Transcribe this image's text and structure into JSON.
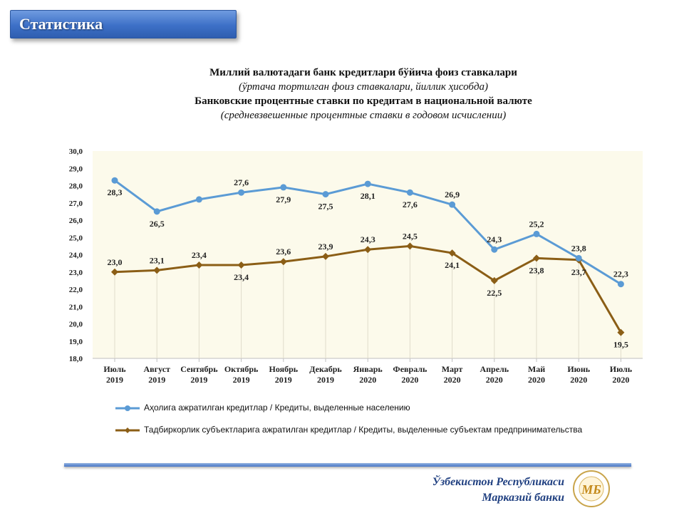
{
  "header": {
    "tab_label": "Статистика"
  },
  "titles": {
    "uz_title": "Миллий валютадаги банк кредитлари бўйича фоиз ставкалари",
    "uz_subtitle": "(ўртача тортилган фоиз ставкалари, йиллик ҳисобда)",
    "ru_title": "Банковские процентные ставки по кредитам в национальной валюте",
    "ru_subtitle": "(средневзвешенные процентные ставки в годовом исчислении)"
  },
  "chart_data": {
    "type": "line",
    "x_month": [
      "Июль",
      "Август",
      "Сентябрь",
      "Октябрь",
      "Ноябрь",
      "Декабрь",
      "Январь",
      "Февраль",
      "Март",
      "Апрель",
      "Май",
      "Июнь",
      "Июль"
    ],
    "x_year": [
      "2019",
      "2019",
      "2019",
      "2019",
      "2019",
      "2019",
      "2020",
      "2020",
      "2020",
      "2020",
      "2020",
      "2020",
      "2020"
    ],
    "ylim": [
      18,
      30
    ],
    "yticks": [
      "18,0",
      "19,0",
      "20,0",
      "21,0",
      "22,0",
      "23,0",
      "24,0",
      "25,0",
      "26,0",
      "27,0",
      "28,0",
      "29,0",
      "30,0"
    ],
    "grid": false,
    "legend_position": "bottom",
    "series": [
      {
        "name": "Аҳолига ажратилган кредитлар / Кредиты, выделенные населению",
        "color": "#5b9bd5",
        "values": [
          28.3,
          26.5,
          27.2,
          27.6,
          27.9,
          27.5,
          28.1,
          27.6,
          26.9,
          24.3,
          25.2,
          23.8,
          22.3
        ],
        "labels": [
          "28,3",
          "26,5",
          "",
          "27,6",
          "27,9",
          "27,5",
          "28,1",
          "27,6",
          "26,9",
          "24,3",
          "25,2",
          "23,8",
          "22,3"
        ]
      },
      {
        "name": "Тадбиркорлик субъектларига ажратилган кредитлар / Кредиты, выделенные субъектам предпринимательства",
        "color": "#8b5e16",
        "values": [
          23.0,
          23.1,
          23.4,
          23.4,
          23.6,
          23.9,
          24.3,
          24.5,
          24.1,
          22.5,
          23.8,
          23.7,
          19.5
        ],
        "labels": [
          "23,0",
          "23,1",
          "23,4",
          "23,4",
          "23,6",
          "23,9",
          "24,3",
          "24,5",
          "24,1",
          "22,5",
          "23,8",
          "23,7",
          "19,5"
        ]
      }
    ]
  },
  "footer": {
    "bank_line1": "Ўзбекистон Республикаси",
    "bank_line2": "Марказий банки",
    "logo_text": "МБ"
  }
}
